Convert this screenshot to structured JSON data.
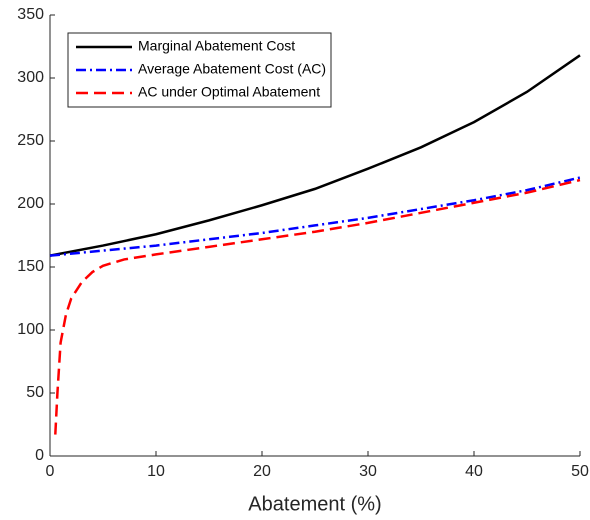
{
  "chart_data": {
    "type": "line",
    "xlabel": "Abatement (%)",
    "xlim": [
      0,
      50
    ],
    "xticks": [
      0,
      10,
      20,
      30,
      40,
      50
    ],
    "ylim": [
      0,
      350
    ],
    "yticks": [
      0,
      50,
      100,
      150,
      200,
      250,
      300,
      350
    ],
    "legend": "upper left",
    "series": [
      {
        "name": "Marginal Abatement Cost",
        "color": "#000000",
        "line_style": "solid",
        "x": [
          0,
          5,
          10,
          15,
          20,
          25,
          30,
          35,
          40,
          45,
          50
        ],
        "values": [
          159,
          167,
          176,
          187,
          199,
          212,
          228,
          245,
          265,
          289,
          318
        ]
      },
      {
        "name": "Average Abatement Cost (AC)",
        "color": "#0000ff",
        "line_style": "dashdot",
        "x": [
          0,
          5,
          10,
          15,
          20,
          25,
          30,
          35,
          40,
          45,
          50
        ],
        "values": [
          159,
          163,
          167,
          172,
          177,
          183,
          189,
          196,
          203,
          211,
          221
        ]
      },
      {
        "name": "AC under Optimal Abatement",
        "color": "#ff0000",
        "line_style": "dashed",
        "x": [
          0.5,
          0.7,
          1,
          1.5,
          2,
          3,
          4,
          5,
          7,
          10,
          15,
          20,
          25,
          30,
          35,
          40,
          45,
          50
        ],
        "values": [
          17,
          50,
          90,
          112,
          125,
          138,
          146,
          151,
          156,
          160,
          166,
          172,
          178,
          185,
          193,
          201,
          209,
          219
        ]
      }
    ]
  }
}
